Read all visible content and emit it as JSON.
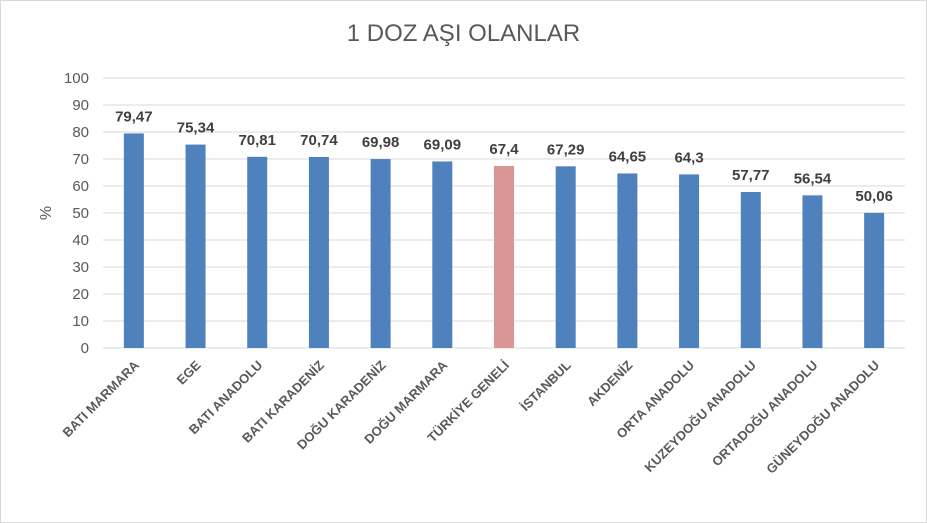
{
  "chart_data": {
    "type": "bar",
    "title": "1 DOZ AŞI OLANLAR",
    "xlabel": "",
    "ylabel": "%",
    "ylim": [
      0,
      100
    ],
    "yticks": [
      0,
      10,
      20,
      30,
      40,
      50,
      60,
      70,
      80,
      90,
      100
    ],
    "grid": true,
    "legend": "none",
    "categories": [
      "BATI MARMARA",
      "EGE",
      "BATI ANADOLU",
      "BATI KARADENİZ",
      "DOĞU KARADENİZ",
      "DOĞU MARMARA",
      "TÜRKİYE GENELİ",
      "İSTANBUL",
      "AKDENİZ",
      "ORTA ANADOLU",
      "KUZEYDOĞU ANADOLU",
      "ORTADOĞU ANADOLU",
      "GÜNEYDOĞU ANADOLU"
    ],
    "values": [
      79.47,
      75.34,
      70.81,
      70.74,
      69.98,
      69.09,
      67.4,
      67.29,
      64.65,
      64.3,
      57.77,
      56.54,
      50.06
    ],
    "value_labels": [
      "79,47",
      "75,34",
      "70,81",
      "70,74",
      "69,98",
      "69,09",
      "67,4",
      "67,29",
      "64,65",
      "64,3",
      "57,77",
      "56,54",
      "50,06"
    ],
    "colors": {
      "bar": "#4f81bd",
      "highlight": "#d99694",
      "highlight_category": "TÜRKİYE GENELİ",
      "grid": "#d9d9d9"
    }
  }
}
